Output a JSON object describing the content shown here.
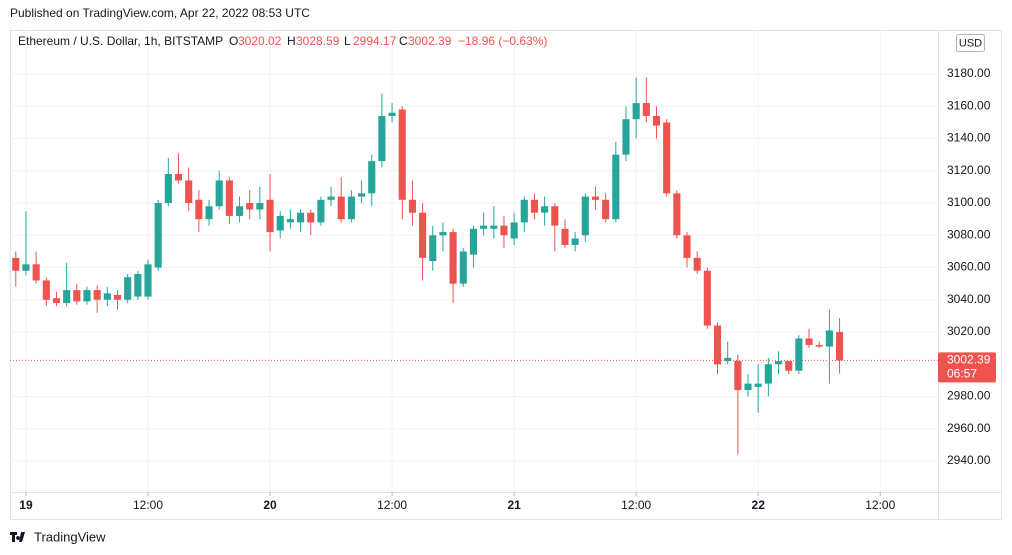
{
  "header": {
    "published": "Published on TradingView.com, Apr 22, 2022 08:53 UTC"
  },
  "footer": {
    "brand": "TradingView"
  },
  "chart_data": {
    "type": "candlestick",
    "title": "Ethereum / U.S. Dollar, 1h, BITSTAMP",
    "ohlc_labels": [
      "O",
      "H",
      "L",
      "C"
    ],
    "change": "−18.96 (−0.63%)",
    "currency": "USD",
    "countdown": "06:57",
    "last_price": 3002.39,
    "up_color": "#26a69a",
    "down_color": "#ef5350",
    "x": [
      -1,
      0,
      1,
      2,
      3,
      4,
      5,
      6,
      7,
      8,
      9,
      10,
      11,
      12,
      13,
      14,
      15,
      16,
      17,
      18,
      19,
      20,
      21,
      22,
      23,
      24,
      25,
      26,
      27,
      28,
      29,
      30,
      31,
      32,
      33,
      34,
      35,
      36,
      37,
      38,
      39,
      40,
      41,
      42,
      43,
      44,
      45,
      46,
      47,
      48,
      49,
      50,
      51,
      52,
      53,
      54,
      55,
      56,
      57,
      58,
      59,
      60,
      61,
      62,
      63,
      64,
      65,
      66,
      67,
      68,
      69,
      70,
      71,
      72,
      73,
      74,
      75,
      76,
      77,
      78,
      79,
      80
    ],
    "open": [
      3066,
      3058,
      3062,
      3052,
      3041,
      3038,
      3046,
      3039,
      3046,
      3040,
      3043,
      3040,
      3042,
      3042,
      3060,
      3100,
      3118,
      3114,
      3102,
      3090,
      3098,
      3114,
      3092,
      3100,
      3096,
      3102,
      3083,
      3088,
      3088,
      3094,
      3088,
      3102,
      3104,
      3090,
      3104,
      3106,
      3126,
      3154,
      3158,
      3102,
      3094,
      3064,
      3080,
      3082,
      3050,
      3068,
      3084,
      3084,
      3086,
      3078,
      3088,
      3102,
      3094,
      3098,
      3084,
      3074,
      3080,
      3104,
      3102,
      3090,
      3130,
      3152,
      3162,
      3154,
      3150,
      3106,
      3080,
      3066,
      3058,
      3024,
      3002,
      3002,
      2984,
      2986,
      2988,
      3000,
      3002,
      2996,
      3016,
      3012,
      3011,
      3020.02
    ],
    "high": [
      3070,
      3095,
      3070,
      3054,
      3045,
      3063,
      3050,
      3048,
      3049,
      3048,
      3046,
      3056,
      3058,
      3065,
      3102,
      3128,
      3131,
      3122,
      3108,
      3102,
      3120,
      3116,
      3104,
      3108,
      3110,
      3118,
      3095,
      3096,
      3096,
      3096,
      3104,
      3110,
      3116,
      3108,
      3114,
      3130,
      3168,
      3162,
      3160,
      3114,
      3100,
      3086,
      3088,
      3084,
      3072,
      3086,
      3094,
      3098,
      3092,
      3094,
      3104,
      3106,
      3104,
      3100,
      3090,
      3082,
      3106,
      3110,
      3106,
      3138,
      3160,
      3178,
      3178,
      3160,
      3152,
      3108,
      3082,
      3070,
      3060,
      3026,
      3014,
      3006,
      2994,
      3000,
      3004,
      3008,
      3002,
      3018,
      3022,
      3014,
      3034,
      3028.59
    ],
    "low": [
      3048,
      3055,
      3050,
      3036,
      3036,
      3036,
      3037,
      3037,
      3032,
      3036,
      3034,
      3038,
      3040,
      3040,
      3058,
      3098,
      3112,
      3095,
      3082,
      3086,
      3096,
      3087,
      3088,
      3090,
      3090,
      3070,
      3078,
      3084,
      3082,
      3080,
      3086,
      3098,
      3088,
      3088,
      3100,
      3098,
      3122,
      3150,
      3090,
      3086,
      3052,
      3058,
      3070,
      3038,
      3048,
      3060,
      3080,
      3078,
      3072,
      3074,
      3082,
      3090,
      3086,
      3070,
      3072,
      3070,
      3076,
      3096,
      3088,
      3088,
      3126,
      3140,
      3150,
      3140,
      3104,
      3078,
      3060,
      3056,
      3022,
      2994,
      3000,
      2944,
      2980,
      2970,
      2980,
      2994,
      2994,
      2994,
      3010,
      3010,
      2988,
      2994.17
    ],
    "close": [
      3058,
      3062,
      3052,
      3040,
      3038,
      3046,
      3039,
      3046,
      3040,
      3044,
      3040,
      3054,
      3056,
      3062,
      3100,
      3118,
      3114,
      3100,
      3090,
      3098,
      3114,
      3092,
      3098,
      3096,
      3100,
      3082,
      3092,
      3090,
      3094,
      3088,
      3102,
      3104,
      3090,
      3104,
      3106,
      3126,
      3154,
      3156,
      3102,
      3094,
      3066,
      3080,
      3082,
      3050,
      3070,
      3084,
      3086,
      3086,
      3080,
      3088,
      3102,
      3094,
      3098,
      3086,
      3074,
      3078,
      3104,
      3102,
      3090,
      3130,
      3152,
      3162,
      3154,
      3148,
      3106,
      3080,
      3066,
      3058,
      3024,
      3000,
      3004,
      2984,
      2988,
      2988,
      3000,
      3002,
      2996,
      3016,
      3012,
      3011,
      3021,
      3002.39
    ],
    "xlim": [
      -1.57,
      89.68
    ],
    "xticks": [
      {
        "value": 0,
        "label": "19"
      },
      {
        "value": 12,
        "label": "12:00"
      },
      {
        "value": 24,
        "label": "20"
      },
      {
        "value": 36,
        "label": "12:00"
      },
      {
        "value": 48,
        "label": "21"
      },
      {
        "value": 60,
        "label": "12:00"
      },
      {
        "value": 72,
        "label": "22"
      },
      {
        "value": 84,
        "label": "12:00"
      }
    ],
    "ylim": [
      2920.8,
      3207.3
    ],
    "yticks": [
      {
        "value": 2940,
        "label": "2940.00"
      },
      {
        "value": 2960,
        "label": "2960.00"
      },
      {
        "value": 2980,
        "label": "2980.00"
      },
      {
        "value": 3000,
        "label": "3000.00"
      },
      {
        "value": 3020,
        "label": "3020.00"
      },
      {
        "value": 3040,
        "label": "3040.00"
      },
      {
        "value": 3060,
        "label": "3060.00"
      },
      {
        "value": 3080,
        "label": "3080.00"
      },
      {
        "value": 3100,
        "label": "3100.00"
      },
      {
        "value": 3120,
        "label": "3120.00"
      },
      {
        "value": 3140,
        "label": "3140.00"
      },
      {
        "value": 3160,
        "label": "3160.00"
      },
      {
        "value": 3180,
        "label": "3180.00"
      }
    ],
    "grid": true
  }
}
